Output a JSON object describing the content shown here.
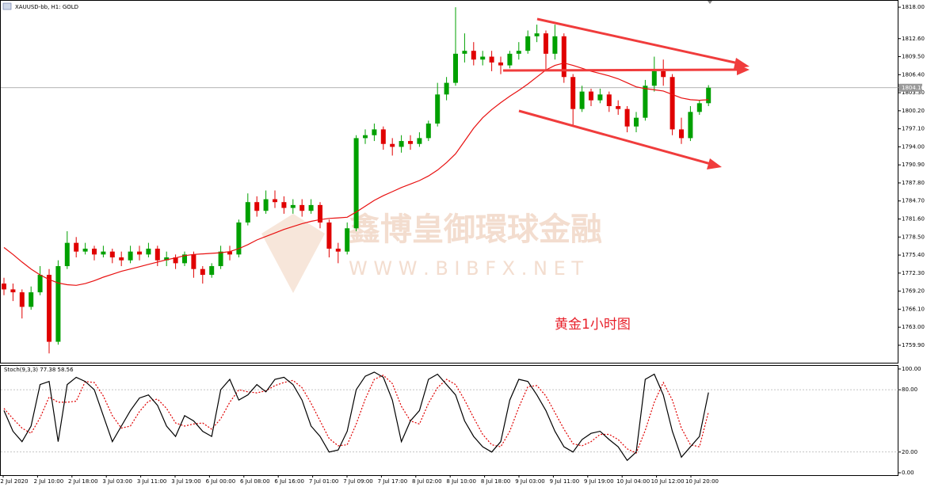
{
  "chart_data": {
    "type": "candlestick",
    "title": "XAUUSD-bb, H1: GOLD",
    "annotation": "黄金1小时图",
    "watermark": [
      "鑫博皇御環球金融",
      "W W W . B I B F X . N E T"
    ],
    "up_color": "#00a000",
    "down_color": "#e00000",
    "ylim": [
      1756.9,
      1819.1
    ],
    "yticks": [
      {
        "value": 1818,
        "label": "1818.00"
      },
      {
        "value": 1812.6,
        "label": "1812.60"
      },
      {
        "value": 1809.5,
        "label": "1809.50"
      },
      {
        "value": 1806.4,
        "label": "1806.40"
      },
      {
        "value": 1803.3,
        "label": "1803.30"
      },
      {
        "value": 1800.2,
        "label": "1800.20"
      },
      {
        "value": 1797.1,
        "label": "1797.10"
      },
      {
        "value": 1794,
        "label": "1794.00"
      },
      {
        "value": 1790.9,
        "label": "1790.90"
      },
      {
        "value": 1787.8,
        "label": "1787.80"
      },
      {
        "value": 1784.7,
        "label": "1784.70"
      },
      {
        "value": 1781.6,
        "label": "1781.60"
      },
      {
        "value": 1778.5,
        "label": "1778.50"
      },
      {
        "value": 1775.4,
        "label": "1775.40"
      },
      {
        "value": 1772.3,
        "label": "1772.30"
      },
      {
        "value": 1769.2,
        "label": "1769.20"
      },
      {
        "value": 1766.1,
        "label": "1766.10"
      },
      {
        "value": 1763,
        "label": "1763.00"
      },
      {
        "value": 1759.9,
        "label": "1759.90"
      }
    ],
    "current_price": {
      "value": 1804.16,
      "label": "1804.16"
    },
    "x_labels": [
      "2 Jul 2020",
      "2 Jul 10:00",
      "2 Jul 18:00",
      "3 Jul 03:00",
      "3 Jul 11:00",
      "3 Jul 19:00",
      "6 Jul 00:00",
      "6 Jul 08:00",
      "6 Jul 16:00",
      "7 Jul 01:00",
      "7 Jul 09:00",
      "7 Jul 17:00",
      "8 Jul 02:00",
      "8 Jul 10:00",
      "8 Jul 18:00",
      "9 Jul 03:00",
      "9 Jul 11:00",
      "9 Jul 19:00",
      "10 Jul 04:00",
      "10 Jul 12:00",
      "10 Jul 20:00"
    ],
    "open": [
      1770.5,
      1769.5,
      1769.0,
      1766.5,
      1769.0,
      1772.0,
      1760.5,
      1773.5,
      1777.5,
      1776.0,
      1776.5,
      1775.5,
      1776.0,
      1775.0,
      1774.5,
      1776.0,
      1775.5,
      1776.5,
      1774.5,
      1775.0,
      1774.0,
      1775.5,
      1773.0,
      1772.0,
      1773.5,
      1776.0,
      1775.5,
      1781.0,
      1784.5,
      1783.0,
      1785.0,
      1784.5,
      1783.5,
      1784.0,
      1783.0,
      1784.0,
      1781.0,
      1776.5,
      1776.0,
      1780.0,
      1795.5,
      1796.0,
      1797.0,
      1794.5,
      1794.0,
      1795.0,
      1794.5,
      1795.5,
      1798.0,
      1803.0,
      1805.0,
      1810.0,
      1810.5,
      1809.0,
      1809.5,
      1808.5,
      1808.0,
      1810.0,
      1810.5,
      1813.0,
      1813.5,
      1810.0,
      1813.0,
      1806.0,
      1800.5,
      1803.5,
      1802.0,
      1803.0,
      1801.0,
      1800.5,
      1797.5,
      1799.0,
      1804.5,
      1807.0,
      1806.0,
      1797.0,
      1795.5,
      1800.0,
      1801.5
    ],
    "high": [
      1771.5,
      1770.5,
      1769.5,
      1770.0,
      1773.5,
      1773.0,
      1774.5,
      1779.5,
      1778.5,
      1777.5,
      1777.0,
      1777.0,
      1776.5,
      1776.0,
      1777.0,
      1777.0,
      1777.5,
      1777.0,
      1776.0,
      1775.5,
      1776.0,
      1776.0,
      1773.5,
      1774.0,
      1777.0,
      1777.0,
      1781.5,
      1786.0,
      1785.5,
      1786.5,
      1786.5,
      1785.5,
      1785.0,
      1785.0,
      1785.0,
      1784.5,
      1781.5,
      1777.5,
      1781.0,
      1796.0,
      1797.0,
      1798.0,
      1797.5,
      1795.5,
      1796.0,
      1796.0,
      1796.5,
      1798.5,
      1805.0,
      1806.0,
      1818.0,
      1813.5,
      1812.0,
      1810.5,
      1810.5,
      1809.5,
      1810.5,
      1812.0,
      1814.0,
      1815.0,
      1814.0,
      1815.0,
      1813.5,
      1806.5,
      1804.5,
      1804.0,
      1804.0,
      1803.5,
      1802.0,
      1801.0,
      1800.0,
      1805.5,
      1809.5,
      1809.0,
      1806.5,
      1799.0,
      1801.0,
      1802.0,
      1804.6
    ],
    "low": [
      1768.5,
      1767.5,
      1764.5,
      1766.0,
      1768.5,
      1758.5,
      1760.0,
      1773.0,
      1775.0,
      1775.5,
      1774.5,
      1775.0,
      1774.0,
      1773.5,
      1774.0,
      1774.5,
      1775.0,
      1773.5,
      1773.5,
      1773.0,
      1773.5,
      1771.5,
      1770.5,
      1771.5,
      1773.0,
      1774.5,
      1775.0,
      1780.5,
      1782.0,
      1782.5,
      1783.5,
      1782.5,
      1782.5,
      1782.0,
      1782.5,
      1780.0,
      1775.0,
      1774.0,
      1775.5,
      1779.5,
      1794.5,
      1795.0,
      1793.5,
      1792.5,
      1793.0,
      1793.5,
      1794.0,
      1795.0,
      1797.5,
      1802.0,
      1804.5,
      1808.5,
      1808.0,
      1808.0,
      1807.0,
      1806.5,
      1807.5,
      1809.0,
      1810.0,
      1812.0,
      1807.0,
      1809.0,
      1805.0,
      1797.5,
      1800.0,
      1801.0,
      1801.5,
      1800.0,
      1799.5,
      1796.5,
      1796.5,
      1798.5,
      1803.5,
      1804.5,
      1796.0,
      1794.5,
      1795.0,
      1799.5,
      1801.0
    ],
    "close": [
      1769.5,
      1769.0,
      1766.5,
      1769.0,
      1772.0,
      1760.5,
      1773.5,
      1777.5,
      1776.0,
      1776.5,
      1775.5,
      1776.0,
      1775.0,
      1774.5,
      1776.0,
      1775.5,
      1776.5,
      1774.5,
      1775.0,
      1774.0,
      1775.5,
      1773.0,
      1772.0,
      1773.5,
      1776.0,
      1775.5,
      1781.0,
      1784.5,
      1783.0,
      1785.0,
      1784.5,
      1783.5,
      1784.0,
      1783.0,
      1784.0,
      1781.0,
      1776.5,
      1776.0,
      1780.0,
      1795.5,
      1796.0,
      1797.0,
      1794.5,
      1794.0,
      1795.0,
      1794.5,
      1795.5,
      1798.0,
      1803.0,
      1805.0,
      1810.0,
      1810.5,
      1809.0,
      1809.5,
      1808.5,
      1808.0,
      1810.0,
      1810.5,
      1813.0,
      1813.5,
      1810.0,
      1813.0,
      1806.0,
      1800.5,
      1803.5,
      1802.0,
      1803.0,
      1801.0,
      1800.5,
      1797.5,
      1799.0,
      1804.5,
      1807.0,
      1806.0,
      1797.0,
      1795.5,
      1800.0,
      1801.5,
      1804.16
    ],
    "ma": {
      "color": "#e81010",
      "values": [
        1776.7,
        1775.5,
        1774.2,
        1773.0,
        1772.0,
        1771.2,
        1770.6,
        1770.3,
        1770.2,
        1770.5,
        1771.0,
        1771.6,
        1772.1,
        1772.6,
        1773.0,
        1773.4,
        1773.8,
        1774.2,
        1774.6,
        1774.9,
        1775.3,
        1775.5,
        1775.6,
        1775.7,
        1775.8,
        1776.0,
        1776.5,
        1777.2,
        1778.0,
        1778.6,
        1779.2,
        1779.8,
        1780.3,
        1780.8,
        1781.2,
        1781.5,
        1781.7,
        1781.8,
        1781.9,
        1782.8,
        1783.8,
        1784.8,
        1785.6,
        1786.3,
        1787.0,
        1787.6,
        1788.2,
        1789.0,
        1790.0,
        1791.3,
        1792.8,
        1795.0,
        1797.2,
        1799.0,
        1800.4,
        1801.6,
        1802.7,
        1803.7,
        1804.8,
        1806.0,
        1807.2,
        1808.0,
        1808.4,
        1808.0,
        1807.5,
        1807.0,
        1806.6,
        1806.2,
        1805.7,
        1805.0,
        1804.3,
        1804.0,
        1803.8,
        1803.6,
        1803.0,
        1802.4,
        1802.1,
        1802.0,
        1802.1
      ]
    },
    "stoch": {
      "label": "Stoch(9,3,3) 77.38 58.56",
      "ylim": [
        -2.3,
        103
      ],
      "yticks": [
        {
          "value": 100,
          "label": "100.00"
        },
        {
          "value": 80,
          "label": "80.00"
        },
        {
          "value": 20,
          "label": "20.00"
        },
        {
          "value": 0,
          "label": "0.00"
        }
      ],
      "k": {
        "color": "#000000",
        "values": [
          60,
          40,
          30,
          45,
          85,
          88,
          30,
          85,
          92,
          88,
          80,
          55,
          30,
          45,
          60,
          72,
          75,
          65,
          45,
          35,
          55,
          50,
          40,
          35,
          80,
          90,
          70,
          75,
          85,
          78,
          90,
          92,
          85,
          70,
          45,
          35,
          20,
          22,
          40,
          80,
          93,
          97,
          92,
          70,
          30,
          50,
          60,
          90,
          95,
          85,
          75,
          50,
          35,
          25,
          20,
          30,
          70,
          90,
          88,
          75,
          60,
          40,
          25,
          20,
          32,
          38,
          40,
          32,
          25,
          12,
          20,
          90,
          95,
          75,
          40,
          15,
          25,
          35,
          77.38
        ]
      },
      "d": {
        "color": "#e00000",
        "values": [
          62,
          52,
          43,
          38,
          53,
          73,
          68,
          68,
          69,
          88,
          87,
          74,
          55,
          43,
          45,
          59,
          69,
          71,
          62,
          48,
          45,
          47,
          48,
          42,
          52,
          68,
          80,
          78,
          77,
          79,
          84,
          87,
          89,
          82,
          67,
          50,
          33,
          26,
          27,
          47,
          71,
          90,
          94,
          86,
          64,
          50,
          47,
          67,
          82,
          90,
          85,
          70,
          53,
          37,
          27,
          25,
          40,
          63,
          83,
          84,
          74,
          58,
          42,
          28,
          26,
          30,
          37,
          37,
          32,
          23,
          19,
          41,
          68,
          87,
          70,
          43,
          27,
          25,
          58.56
        ]
      }
    }
  }
}
